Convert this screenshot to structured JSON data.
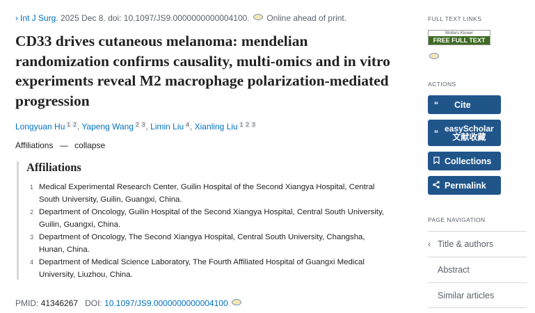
{
  "citation": {
    "journal": "Int J Surg.",
    "date": "2025 Dec 8.",
    "doi_text": "doi: 10.1097/JS9.0000000000004100.",
    "status": "Online ahead of print."
  },
  "title": "CD33 drives cutaneous melanoma: mendelian randomization confirms causality, multi-omics and in vitro experiments reveal M2 macrophage polarization-mediated progression",
  "authors": [
    {
      "name": "Longyuan Hu",
      "affs": [
        "1",
        "2"
      ]
    },
    {
      "name": "Yapeng Wang",
      "affs": [
        "2",
        "3"
      ]
    },
    {
      "name": "Limin Liu",
      "affs": [
        "4"
      ]
    },
    {
      "name": "Xianling Liu",
      "affs": [
        "1",
        "2",
        "3"
      ]
    }
  ],
  "affiliations_toggle": {
    "label": "Affiliations",
    "action": "collapse"
  },
  "affiliations": {
    "heading": "Affiliations",
    "items": [
      {
        "n": "1",
        "text": "Medical Experimental Research Center, Guilin Hospital of the Second Xiangya Hospital, Central South University, Guilin, Guangxi, China."
      },
      {
        "n": "2",
        "text": "Department of Oncology, Guilin Hospital of the Second Xiangya Hospital, Central South University, Guilin, Guangxi, China."
      },
      {
        "n": "3",
        "text": "Department of Oncology, The Second Xiangya Hospital, Central South University, Changsha, Hunan, China."
      },
      {
        "n": "4",
        "text": "Department of Medical Science Laboratory, The Fourth Affiliated Hospital of Guangxi Medical University, Liuzhou, China."
      }
    ]
  },
  "ids": {
    "pmid_label": "PMID:",
    "pmid": "41346267",
    "doi_label": "DOI:",
    "doi": "10.1097/JS9.0000000000004100"
  },
  "sidebar": {
    "full_text_heading": "FULL TEXT LINKS",
    "badge": {
      "brand": "Wolters Kluwer",
      "label": "FREE FULL TEXT"
    },
    "actions_heading": "ACTIONS",
    "buttons": [
      {
        "label": "Cite",
        "icon": "quote-icon"
      },
      {
        "label": "easyScholar",
        "label2": "文献收藏",
        "icon": "quote-icon"
      },
      {
        "label": "Collections",
        "icon": "bookmark-icon"
      },
      {
        "label": "Permalink",
        "icon": "share-icon"
      }
    ],
    "nav_heading": "PAGE NAVIGATION",
    "nav": [
      "Title & authors",
      "Abstract",
      "Similar articles"
    ]
  },
  "colors": {
    "button": "#20558a",
    "link": "#0071bc",
    "badge": "#3d6b22"
  }
}
